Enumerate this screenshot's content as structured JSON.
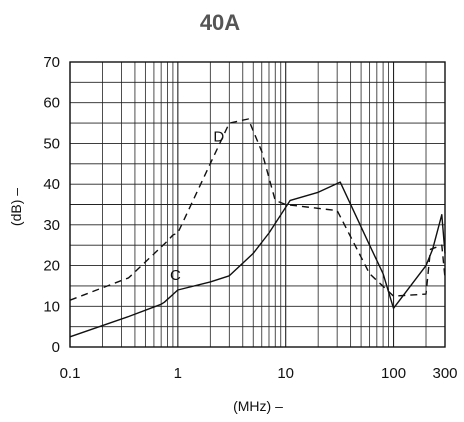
{
  "chart_data": {
    "type": "line",
    "title": "40A",
    "xlabel": "(MHz) –",
    "ylabel": "(dB) –",
    "xscale": "log",
    "xlim": [
      0.1,
      300
    ],
    "ylim": [
      0,
      70
    ],
    "grid": true,
    "x_tick_labels": [
      "0.1",
      "1",
      "10",
      "100",
      "300"
    ],
    "x_ticks": [
      0.1,
      1,
      10,
      100,
      300
    ],
    "y_ticks": [
      0,
      10,
      20,
      30,
      40,
      50,
      60,
      70
    ],
    "y_tick_labels": [
      "0",
      "10",
      "20",
      "30",
      "40",
      "50",
      "60",
      "70"
    ],
    "series": [
      {
        "name": "C",
        "style": "solid",
        "points": [
          {
            "x": 0.1,
            "y": 2.5
          },
          {
            "x": 0.35,
            "y": 7.5
          },
          {
            "x": 0.7,
            "y": 10.5
          },
          {
            "x": 0.75,
            "y": 11
          },
          {
            "x": 1.0,
            "y": 14
          },
          {
            "x": 2.0,
            "y": 16
          },
          {
            "x": 3.0,
            "y": 17.5
          },
          {
            "x": 5.0,
            "y": 23
          },
          {
            "x": 7.0,
            "y": 28
          },
          {
            "x": 11.0,
            "y": 36
          },
          {
            "x": 20.0,
            "y": 38
          },
          {
            "x": 32.0,
            "y": 40.5
          },
          {
            "x": 60.0,
            "y": 25
          },
          {
            "x": 80.0,
            "y": 18
          },
          {
            "x": 100.0,
            "y": 9.5
          },
          {
            "x": 200.0,
            "y": 20
          },
          {
            "x": 230.0,
            "y": 24
          },
          {
            "x": 280.0,
            "y": 32.5
          },
          {
            "x": 300.0,
            "y": 23
          }
        ]
      },
      {
        "name": "D",
        "style": "dashed",
        "points": [
          {
            "x": 0.1,
            "y": 11.5
          },
          {
            "x": 0.35,
            "y": 17
          },
          {
            "x": 0.8,
            "y": 26
          },
          {
            "x": 0.9,
            "y": 27.5
          },
          {
            "x": 1.0,
            "y": 28
          },
          {
            "x": 3.0,
            "y": 55
          },
          {
            "x": 4.5,
            "y": 56
          },
          {
            "x": 6.0,
            "y": 48
          },
          {
            "x": 8.0,
            "y": 36
          },
          {
            "x": 10.0,
            "y": 35
          },
          {
            "x": 30.0,
            "y": 33.5
          },
          {
            "x": 60.0,
            "y": 18
          },
          {
            "x": 100.0,
            "y": 12.5
          },
          {
            "x": 200.0,
            "y": 13
          },
          {
            "x": 220.0,
            "y": 24
          },
          {
            "x": 280.0,
            "y": 25
          },
          {
            "x": 300.0,
            "y": 17
          }
        ]
      }
    ]
  }
}
